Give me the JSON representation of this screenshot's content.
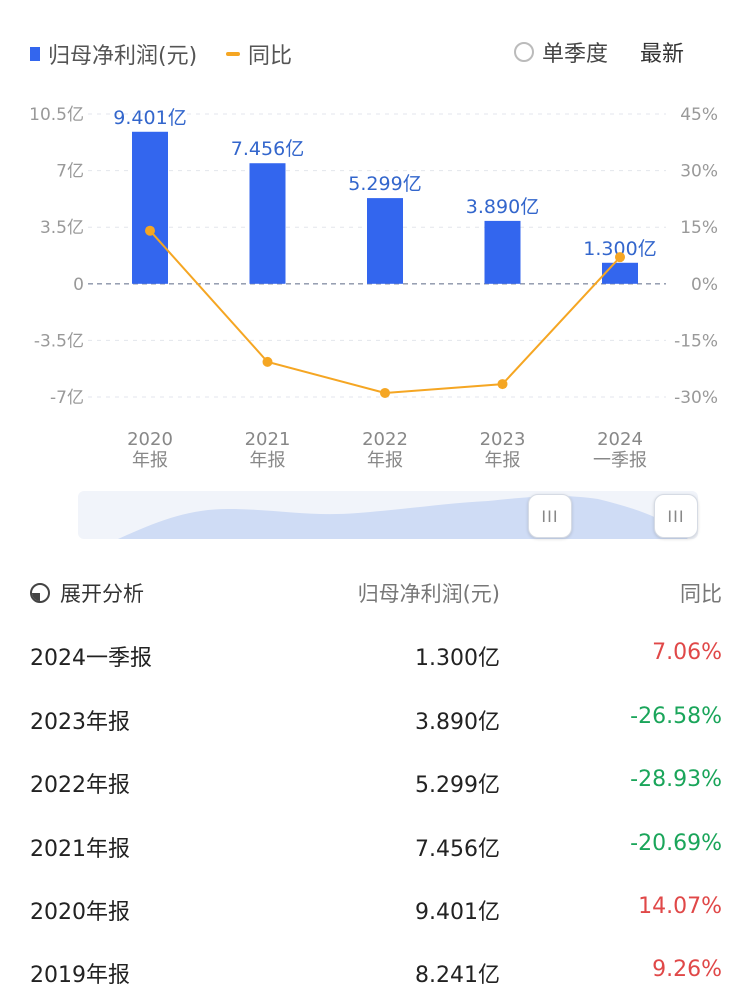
{
  "legend": {
    "bar_label": "归母净利润(元)",
    "line_label": "同比",
    "toggle_label": "单季度",
    "latest_label": "最新"
  },
  "colors": {
    "bar": "#3366ee",
    "line": "#f5a623",
    "positive": "#e04848",
    "negative": "#1aa55a"
  },
  "chart_data": {
    "type": "bar",
    "categories": [
      [
        "2020",
        "年报"
      ],
      [
        "2021",
        "年报"
      ],
      [
        "2022",
        "年报"
      ],
      [
        "2023",
        "年报"
      ],
      [
        "2024",
        "一季报"
      ]
    ],
    "series": [
      {
        "name": "归母净利润(元)",
        "type": "bar",
        "axis": "left",
        "values": [
          9.401,
          7.456,
          5.299,
          3.89,
          1.3
        ],
        "labels": [
          "9.401亿",
          "7.456亿",
          "5.299亿",
          "3.890亿",
          "1.300亿"
        ]
      },
      {
        "name": "同比",
        "type": "line",
        "axis": "right",
        "values": [
          14.07,
          -20.69,
          -28.93,
          -26.58,
          7.06
        ]
      }
    ],
    "y_left": {
      "min": -7,
      "max": 10.5,
      "ticks": [
        10.5,
        7,
        3.5,
        0,
        -3.5,
        -7
      ],
      "tick_labels": [
        "10.5亿",
        "7亿",
        "3.5亿",
        "0",
        "-3.5亿",
        "-7亿"
      ]
    },
    "y_right": {
      "min": -30,
      "max": 45,
      "ticks": [
        45,
        30,
        15,
        0,
        -15,
        -30
      ],
      "tick_labels": [
        "45%",
        "30%",
        "15%",
        "0%",
        "-15%",
        "-30%"
      ]
    }
  },
  "table": {
    "header": {
      "col1": "展开分析",
      "col2": "归母净利润(元)",
      "col3": "同比"
    },
    "rows": [
      {
        "period": "2024一季报",
        "value": "1.300亿",
        "yoy": "7.06%"
      },
      {
        "period": "2023年报",
        "value": "3.890亿",
        "yoy": "-26.58%"
      },
      {
        "period": "2022年报",
        "value": "5.299亿",
        "yoy": "-28.93%"
      },
      {
        "period": "2021年报",
        "value": "7.456亿",
        "yoy": "-20.69%"
      },
      {
        "period": "2020年报",
        "value": "9.401亿",
        "yoy": "14.07%"
      },
      {
        "period": "2019年报",
        "value": "8.241亿",
        "yoy": "9.26%"
      }
    ]
  }
}
